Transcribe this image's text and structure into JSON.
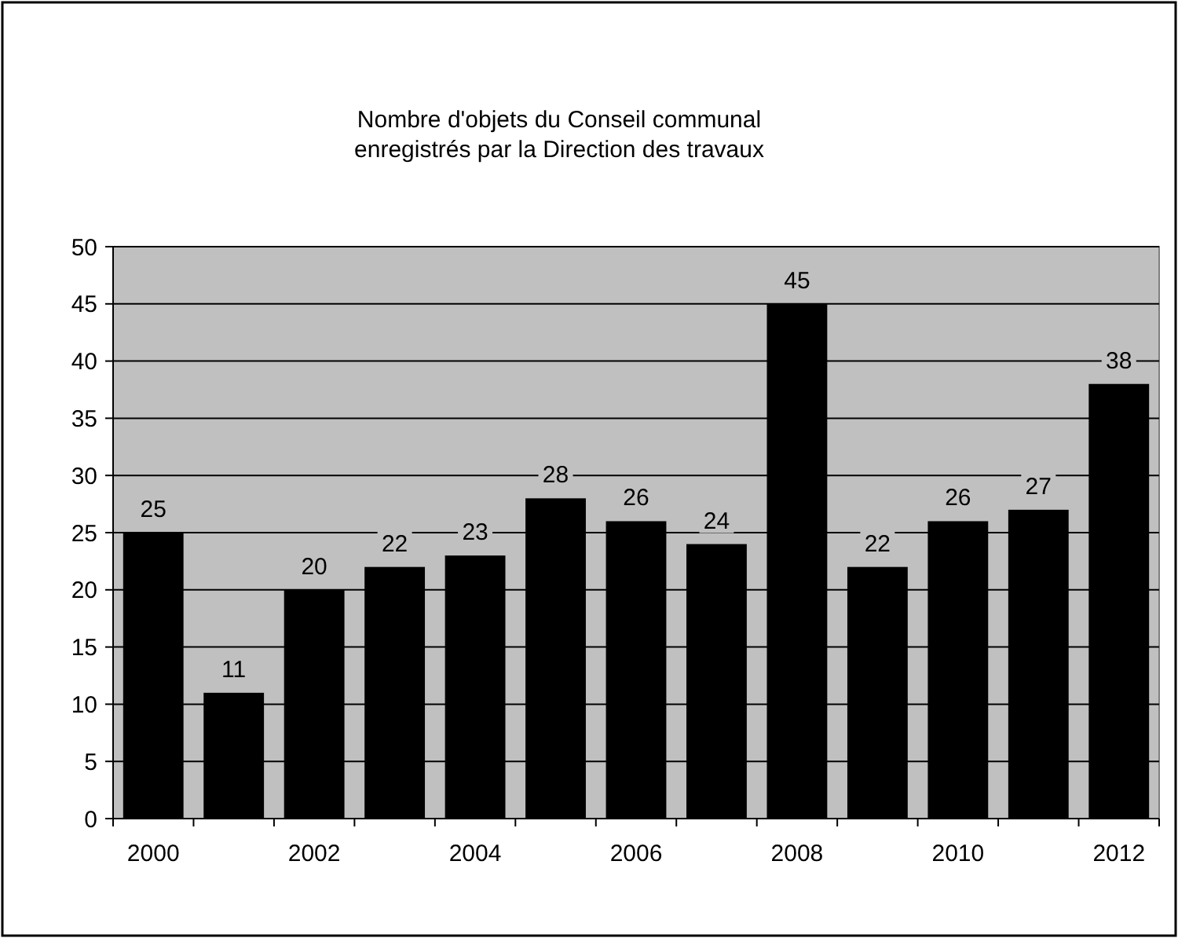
{
  "chart_data": {
    "type": "bar",
    "title": "Nombre d'objets du Conseil communal\nenregistrés par la Direction des travaux",
    "categories": [
      "2000",
      null,
      "2002",
      null,
      "2004",
      null,
      "2006",
      null,
      "2008",
      null,
      "2010",
      null,
      "2012"
    ],
    "values": [
      25,
      11,
      20,
      22,
      23,
      28,
      26,
      24,
      45,
      22,
      26,
      27,
      38
    ],
    "color": "#000000",
    "ylim": [
      0,
      50
    ],
    "yticks": [
      0,
      5,
      10,
      15,
      20,
      25,
      30,
      35,
      40,
      45,
      50
    ],
    "grid": "y",
    "data_labels": true
  }
}
